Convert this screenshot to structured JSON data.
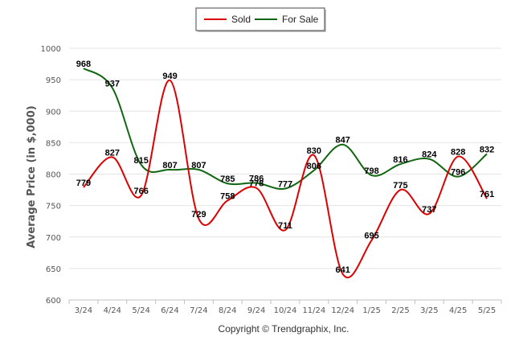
{
  "chart_data": {
    "type": "line",
    "categories": [
      "3/24",
      "4/24",
      "5/24",
      "6/24",
      "7/24",
      "8/24",
      "9/24",
      "10/24",
      "11/24",
      "12/24",
      "1/25",
      "2/25",
      "3/25",
      "4/25",
      "5/25"
    ],
    "series": [
      {
        "name": "Sold",
        "color": "#dd0000",
        "values": [
          779,
          827,
          766,
          949,
          729,
          758,
          778,
          711,
          830,
          641,
          695,
          775,
          737,
          828,
          761
        ]
      },
      {
        "name": "For Sale",
        "color": "#116611",
        "values": [
          968,
          937,
          815,
          807,
          807,
          785,
          786,
          777,
          806,
          847,
          798,
          816,
          824,
          796,
          832
        ]
      }
    ],
    "yticks": [
      600,
      650,
      700,
      750,
      800,
      850,
      900,
      950,
      1000
    ],
    "ylim": [
      600,
      1000
    ],
    "ylabel": "Average Price (in $,000)",
    "xlabel": "",
    "legend_position": "top-center",
    "grid": "horizontal"
  },
  "credit": "Copyright © Trendgraphix, Inc."
}
